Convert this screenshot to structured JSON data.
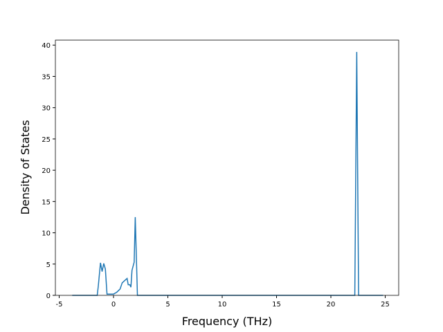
{
  "chart_data": {
    "type": "line",
    "x_label": "Frequency (THz)",
    "y_label": "Density of States",
    "x": [
      -3.8,
      -1.5,
      -1.4,
      -1.2,
      -1.05,
      -0.9,
      -0.75,
      -0.6,
      0,
      0.3,
      0.6,
      0.8,
      1.05,
      1.25,
      1.35,
      1.5,
      1.6,
      1.7,
      1.9,
      2.0,
      2.2,
      22.2,
      22.38,
      22.55,
      24.8
    ],
    "series": [
      {
        "color": "#1f77b4",
        "values": [
          0,
          0,
          1.5,
          5.2,
          3.8,
          5.1,
          4.2,
          0.2,
          0.2,
          0.5,
          1.0,
          2.0,
          2.4,
          2.7,
          1.7,
          1.7,
          1.3,
          4.0,
          5.3,
          12.5,
          0,
          0,
          38.9,
          0,
          0
        ]
      }
    ],
    "xlim": [
      -5.35,
      26.24
    ],
    "xticks": [
      -5,
      0,
      5,
      10,
      15,
      20,
      25
    ],
    "ylim": [
      0,
      40.8
    ],
    "yticks": [
      0,
      5,
      10,
      15,
      20,
      25,
      30,
      35,
      40
    ]
  }
}
